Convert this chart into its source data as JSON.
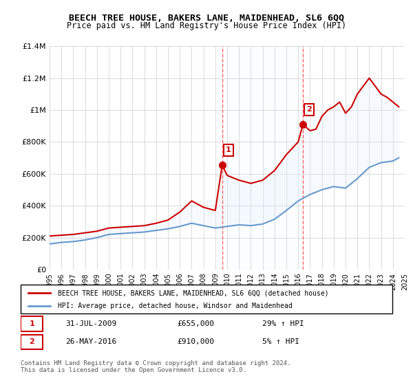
{
  "title": "BEECH TREE HOUSE, BAKERS LANE, MAIDENHEAD, SL6 6QQ",
  "subtitle": "Price paid vs. HM Land Registry's House Price Index (HPI)",
  "legend_line1": "BEECH TREE HOUSE, BAKERS LANE, MAIDENHEAD, SL6 6QQ (detached house)",
  "legend_line2": "HPI: Average price, detached house, Windsor and Maidenhead",
  "annotation1_label": "1",
  "annotation1_date": "31-JUL-2009",
  "annotation1_price": "£655,000",
  "annotation1_hpi": "29% ↑ HPI",
  "annotation2_label": "2",
  "annotation2_date": "26-MAY-2016",
  "annotation2_price": "£910,000",
  "annotation2_hpi": "5% ↑ HPI",
  "footer": "Contains HM Land Registry data © Crown copyright and database right 2024.\nThis data is licensed under the Open Government Licence v3.0.",
  "red_color": "#cc0000",
  "blue_color": "#6699cc",
  "shade_color": "#ddeeff",
  "vline_color": "#ff6666",
  "annotation_box_color": "#cc0000",
  "ylim": [
    0,
    1400000
  ],
  "yticks": [
    0,
    200000,
    400000,
    600000,
    800000,
    1000000,
    1200000,
    1400000
  ],
  "ytick_labels": [
    "£0",
    "£200K",
    "£400K",
    "£600K",
    "£800K",
    "£1M",
    "£1.2M",
    "£1.4M"
  ],
  "sale1_x": 2009.58,
  "sale1_y": 655000,
  "sale2_x": 2016.4,
  "sale2_y": 910000,
  "xmin": 1995,
  "xmax": 2025,
  "red_x": [
    1995,
    1996,
    1997,
    1998,
    1999,
    2000,
    2001,
    2002,
    2003,
    2004,
    2005,
    2006,
    2007,
    2008,
    2008.5,
    2009,
    2009.58,
    2010,
    2011,
    2012,
    2013,
    2014,
    2015,
    2016,
    2016.4,
    2017,
    2017.5,
    2018,
    2018.5,
    2019,
    2019.5,
    2020,
    2020.5,
    2021,
    2021.5,
    2022,
    2022.5,
    2023,
    2023.5,
    2024,
    2024.5
  ],
  "red_y": [
    210000,
    215000,
    220000,
    230000,
    240000,
    260000,
    265000,
    270000,
    275000,
    290000,
    310000,
    360000,
    430000,
    390000,
    380000,
    370000,
    655000,
    590000,
    560000,
    540000,
    560000,
    620000,
    720000,
    800000,
    910000,
    870000,
    880000,
    960000,
    1000000,
    1020000,
    1050000,
    980000,
    1020000,
    1100000,
    1150000,
    1200000,
    1150000,
    1100000,
    1080000,
    1050000,
    1020000
  ],
  "blue_x": [
    1995,
    1996,
    1997,
    1998,
    1999,
    2000,
    2001,
    2002,
    2003,
    2004,
    2005,
    2006,
    2007,
    2008,
    2009,
    2010,
    2011,
    2012,
    2013,
    2014,
    2015,
    2016,
    2017,
    2018,
    2019,
    2020,
    2021,
    2022,
    2023,
    2024,
    2024.5
  ],
  "blue_y": [
    160000,
    170000,
    175000,
    185000,
    200000,
    220000,
    225000,
    230000,
    235000,
    245000,
    255000,
    270000,
    290000,
    275000,
    260000,
    270000,
    280000,
    275000,
    285000,
    315000,
    370000,
    430000,
    470000,
    500000,
    520000,
    510000,
    570000,
    640000,
    670000,
    680000,
    700000
  ]
}
